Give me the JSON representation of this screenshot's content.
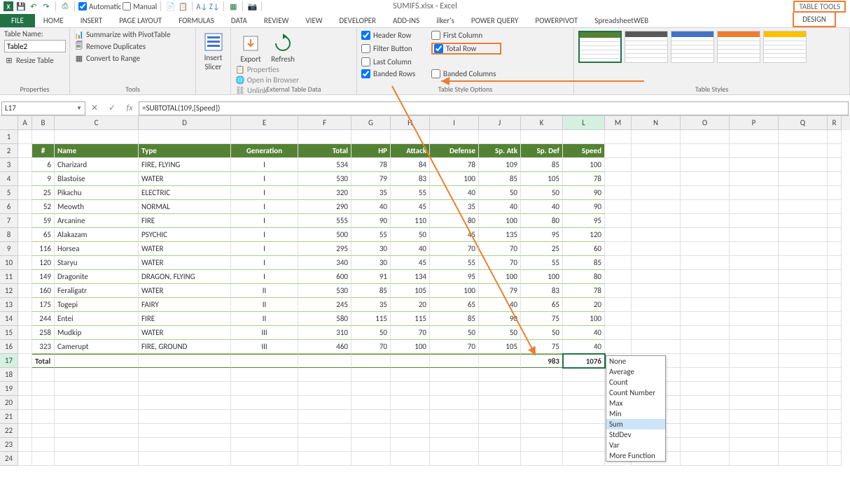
{
  "app": {
    "title": "SUMIFS.xlsx - Excel",
    "table_tools": "TABLE TOOLS"
  },
  "qat": {
    "auto_label": "Automatic",
    "auto_checked": true,
    "manual_label": "Manual",
    "manual_checked": false
  },
  "tabs": [
    "FILE",
    "HOME",
    "INSERT",
    "PAGE LAYOUT",
    "FORMULAS",
    "DATA",
    "REVIEW",
    "VIEW",
    "DEVELOPER",
    "ADD-INS",
    "ilker's",
    "POWER QUERY",
    "POWERPIVOT",
    "SpreadsheetWEB",
    "DESIGN"
  ],
  "ribbon": {
    "props": {
      "label": "Properties",
      "name_label": "Table Name:",
      "name_value": "Table2",
      "resize": "Resize Table"
    },
    "tools": {
      "label": "Tools",
      "pivot": "Summarize with PivotTable",
      "dup": "Remove Duplicates",
      "range": "Convert to Range"
    },
    "slicer": {
      "label": "Insert\nSlicer"
    },
    "ext": {
      "label": "External Table Data",
      "export": "Export",
      "refresh": "Refresh",
      "props": "Properties",
      "browser": "Open in Browser",
      "unlink": "Unlink"
    },
    "styleopt": {
      "label": "Table Style Options",
      "header": "Header Row",
      "header_chk": true,
      "total": "Total Row",
      "total_chk": true,
      "banded_r": "Banded Rows",
      "banded_r_chk": true,
      "first_col": "First Column",
      "first_col_chk": false,
      "last_col": "Last Column",
      "last_col_chk": false,
      "banded_c": "Banded Columns",
      "banded_c_chk": false,
      "filter": "Filter Button",
      "filter_chk": false
    },
    "styles": {
      "label": "Table Styles",
      "swatches": [
        {
          "head": "#548235",
          "sel": true
        },
        {
          "head": "#595959"
        },
        {
          "head": "#4472c4"
        },
        {
          "head": "#ed7d31"
        },
        {
          "head": "#ffc000"
        }
      ]
    }
  },
  "formula": {
    "cell_ref": "L17",
    "formula_text": "=SUBTOTAL(109,[Speed])"
  },
  "columns": [
    "A",
    "B",
    "C",
    "D",
    "E",
    "F",
    "G",
    "H",
    "I",
    "J",
    "K",
    "L",
    "M",
    "N",
    "O",
    "P",
    "Q",
    "R"
  ],
  "col_classes": [
    "cA",
    "cB",
    "cC",
    "cD",
    "cE",
    "cF",
    "cG",
    "cH",
    "cI",
    "cJ",
    "cK",
    "cL",
    "cM",
    "cN",
    "cO",
    "cP",
    "cQ",
    "cR"
  ],
  "row_numbers": [
    1,
    2,
    3,
    4,
    5,
    6,
    7,
    8,
    9,
    10,
    11,
    12,
    13,
    14,
    15,
    16,
    17,
    18,
    19,
    20,
    21,
    22,
    23,
    24
  ],
  "selected_col": "L",
  "selected_row": 17,
  "table": {
    "headers": [
      "#",
      "Name",
      "Type",
      "Generation",
      "Total",
      "HP",
      "Attack",
      "Defense",
      "Sp. Atk",
      "Sp. Def",
      "Speed"
    ],
    "rows": [
      [
        6,
        "Charizard",
        "FIRE, FLYING",
        "I",
        534,
        78,
        84,
        78,
        109,
        85,
        100
      ],
      [
        9,
        "Blastoise",
        "WATER",
        "I",
        530,
        79,
        83,
        100,
        85,
        105,
        78
      ],
      [
        25,
        "Pikachu",
        "ELECTRIC",
        "I",
        320,
        35,
        55,
        40,
        50,
        50,
        90
      ],
      [
        52,
        "Meowth",
        "NORMAL",
        "I",
        290,
        40,
        45,
        35,
        40,
        40,
        90
      ],
      [
        59,
        "Arcanine",
        "FIRE",
        "I",
        555,
        90,
        110,
        80,
        100,
        80,
        95
      ],
      [
        65,
        "Alakazam",
        "PSYCHIC",
        "I",
        500,
        55,
        50,
        45,
        135,
        95,
        120
      ],
      [
        116,
        "Horsea",
        "WATER",
        "I",
        295,
        30,
        40,
        70,
        70,
        25,
        60
      ],
      [
        120,
        "Staryu",
        "WATER",
        "I",
        340,
        30,
        45,
        55,
        70,
        55,
        85
      ],
      [
        149,
        "Dragonite",
        "DRAGON, FLYING",
        "I",
        600,
        91,
        134,
        95,
        100,
        100,
        80
      ],
      [
        160,
        "Feraligatr",
        "WATER",
        "II",
        530,
        85,
        105,
        100,
        79,
        83,
        78
      ],
      [
        175,
        "Togepi",
        "FAIRY",
        "II",
        245,
        35,
        20,
        65,
        40,
        65,
        20
      ],
      [
        244,
        "Entei",
        "FIRE",
        "II",
        580,
        115,
        115,
        85,
        90,
        75,
        100
      ],
      [
        258,
        "Mudkip",
        "WATER",
        "III",
        310,
        50,
        70,
        50,
        50,
        50,
        40
      ],
      [
        323,
        "Camerupt",
        "FIRE, GROUND",
        "III",
        460,
        70,
        100,
        70,
        105,
        75,
        40
      ]
    ],
    "total_label": "Total",
    "total_k": 983,
    "total_l": 1076
  },
  "dropdown": {
    "items": [
      "None",
      "Average",
      "Count",
      "Count Number",
      "Max",
      "Min",
      "Sum",
      "StdDev",
      "Var",
      "More Function"
    ],
    "highlighted": "Sum"
  },
  "colors": {
    "accent": "#217346",
    "table_head": "#548235",
    "highlight": "#ed7d31"
  }
}
